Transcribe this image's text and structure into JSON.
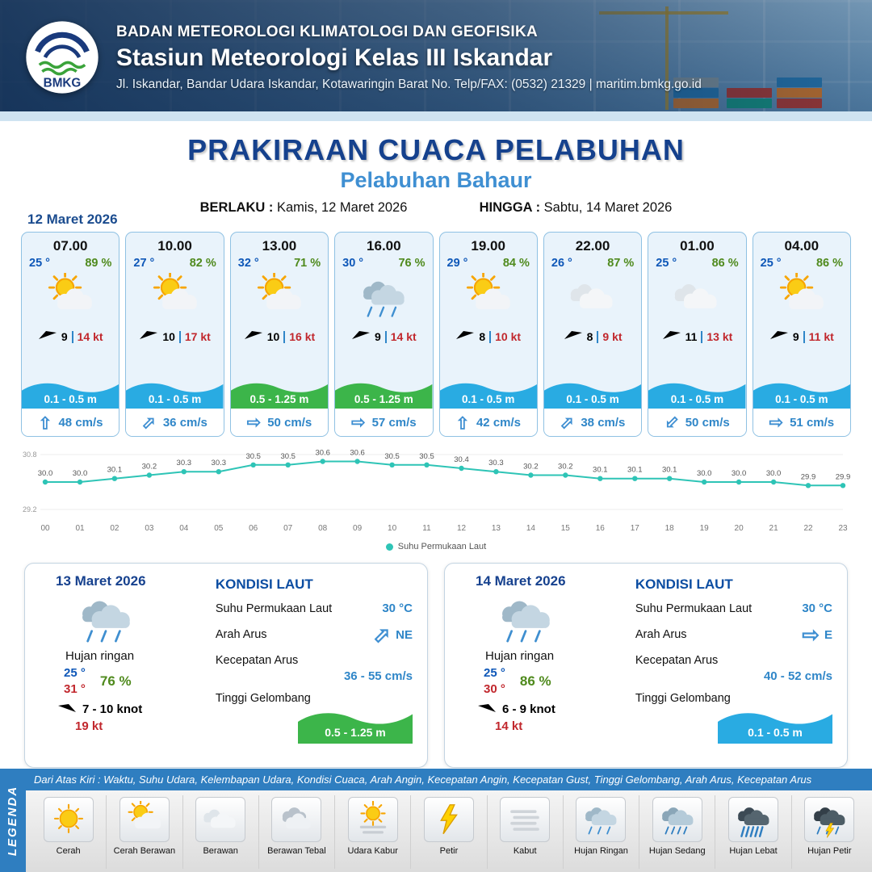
{
  "header": {
    "agency": "BADAN METEOROLOGI KLIMATOLOGI DAN GEOFISIKA",
    "station": "Stasiun Meteorologi Kelas III Iskandar",
    "address": "Jl. Iskandar, Bandar Udara Iskandar, Kotawaringin Barat No. Telp/FAX: (0532) 21329 | maritim.bmkg.go.id",
    "logo_text": "BMKG"
  },
  "title": {
    "main": "PRAKIRAAN CUACA PELABUHAN",
    "port": "Pelabuhan Bahaur",
    "valid_from_label": "BERLAKU :",
    "valid_from": "Kamis, 12 Maret 2026",
    "valid_to_label": "HINGGA :",
    "valid_to": "Sabtu, 14 Maret 2026"
  },
  "forecast": {
    "date": "12 Maret 2026",
    "cards": [
      {
        "time": "07.00",
        "temp": "25 °",
        "humidity": "89 %",
        "icon": "cerah-berawan",
        "wind_speed": "9",
        "gust": "14 kt",
        "wave": "0.1 - 0.5 m",
        "wave_level": "low",
        "current": "48 cm/s",
        "current_dir": "N"
      },
      {
        "time": "10.00",
        "temp": "27 °",
        "humidity": "82 %",
        "icon": "cerah-berawan",
        "wind_speed": "10",
        "gust": "17 kt",
        "wave": "0.1 - 0.5 m",
        "wave_level": "low",
        "current": "36 cm/s",
        "current_dir": "NE"
      },
      {
        "time": "13.00",
        "temp": "32 °",
        "humidity": "71 %",
        "icon": "cerah-berawan",
        "wind_speed": "10",
        "gust": "16 kt",
        "wave": "0.5 - 1.25 m",
        "wave_level": "mid",
        "current": "50 cm/s",
        "current_dir": "E"
      },
      {
        "time": "16.00",
        "temp": "30 °",
        "humidity": "76 %",
        "icon": "hujan-ringan",
        "wind_speed": "9",
        "gust": "14 kt",
        "wave": "0.5 - 1.25 m",
        "wave_level": "mid",
        "current": "57 cm/s",
        "current_dir": "E"
      },
      {
        "time": "19.00",
        "temp": "29 °",
        "humidity": "84 %",
        "icon": "cerah-berawan",
        "wind_speed": "8",
        "gust": "10 kt",
        "wave": "0.1 - 0.5 m",
        "wave_level": "low",
        "current": "42 cm/s",
        "current_dir": "N"
      },
      {
        "time": "22.00",
        "temp": "26 °",
        "humidity": "87 %",
        "icon": "berawan",
        "wind_speed": "8",
        "gust": "9 kt",
        "wave": "0.1 - 0.5 m",
        "wave_level": "low",
        "current": "38 cm/s",
        "current_dir": "NE"
      },
      {
        "time": "01.00",
        "temp": "25 °",
        "humidity": "86 %",
        "icon": "berawan",
        "wind_speed": "11",
        "gust": "13 kt",
        "wave": "0.1 - 0.5 m",
        "wave_level": "low",
        "current": "50 cm/s",
        "current_dir": "SW"
      },
      {
        "time": "04.00",
        "temp": "25 °",
        "humidity": "86 %",
        "icon": "cerah-berawan",
        "wind_speed": "9",
        "gust": "11 kt",
        "wave": "0.1 - 0.5 m",
        "wave_level": "low",
        "current": "51 cm/s",
        "current_dir": "E"
      }
    ]
  },
  "chart_data": {
    "type": "line",
    "series_name": "Suhu Permukaan Laut",
    "x": [
      "00",
      "01",
      "02",
      "03",
      "04",
      "05",
      "06",
      "07",
      "08",
      "09",
      "10",
      "11",
      "12",
      "13",
      "14",
      "15",
      "16",
      "17",
      "18",
      "19",
      "20",
      "21",
      "22",
      "23"
    ],
    "values": [
      30.0,
      30.0,
      30.1,
      30.2,
      30.3,
      30.3,
      30.5,
      30.5,
      30.6,
      30.6,
      30.5,
      30.5,
      30.4,
      30.3,
      30.2,
      30.2,
      30.1,
      30.1,
      30.1,
      30.0,
      30.0,
      30.0,
      29.9,
      29.9
    ],
    "ylim": [
      29.2,
      30.8
    ],
    "line_color": "#2ec4b6",
    "grid": false,
    "legend_position": "bottom"
  },
  "days": [
    {
      "date": "13 Maret 2026",
      "icon": "hujan-ringan",
      "condition": "Hujan ringan",
      "temp_min": "25 °",
      "temp_max": "31 °",
      "humidity": "76 %",
      "wind": "7  - 10 knot",
      "gust": "19 kt",
      "sea": {
        "title": "KONDISI LAUT",
        "sst_label": "Suhu Permukaan Laut",
        "sst": "30 °C",
        "current_dir_label": "Arah Arus",
        "current_dir": "NE",
        "current_speed_label": "Kecepatan Arus",
        "current_speed": "36  - 55 cm/s",
        "wave_label": "Tinggi Gelombang",
        "wave": "0.5 - 1.25 m",
        "wave_level": "mid"
      }
    },
    {
      "date": "14 Maret 2026",
      "icon": "hujan-ringan",
      "condition": "Hujan ringan",
      "temp_min": "25 °",
      "temp_max": "30 °",
      "humidity": "86 %",
      "wind": "6  - 9 knot",
      "gust": "14 kt",
      "sea": {
        "title": "KONDISI LAUT",
        "sst_label": "Suhu Permukaan Laut",
        "sst": "30 °C",
        "current_dir_label": "Arah Arus",
        "current_dir": "E",
        "current_speed_label": "Kecepatan Arus",
        "current_speed": "40  - 52 cm/s",
        "wave_label": "Tinggi Gelombang",
        "wave": "0.1 - 0.5 m",
        "wave_level": "low"
      }
    }
  ],
  "legend": {
    "band": "LEGENDA",
    "description": "Dari Atas Kiri : Waktu, Suhu Udara, Kelembapan Udara, Kondisi Cuaca, Arah Angin, Kecepatan Angin, Kecepatan Gust, Tinggi Gelombang, Arah Arus, Kecepatan Arus",
    "items": [
      {
        "label": "Cerah",
        "icon": "cerah"
      },
      {
        "label": "Cerah Berawan",
        "icon": "cerah-berawan"
      },
      {
        "label": "Berawan",
        "icon": "berawan"
      },
      {
        "label": "Berawan Tebal",
        "icon": "berawan-tebal"
      },
      {
        "label": "Udara Kabur",
        "icon": "udara-kabur"
      },
      {
        "label": "Petir",
        "icon": "petir"
      },
      {
        "label": "Kabut",
        "icon": "kabut"
      },
      {
        "label": "Hujan Ringan",
        "icon": "hujan-ringan"
      },
      {
        "label": "Hujan Sedang",
        "icon": "hujan-sedang"
      },
      {
        "label": "Hujan Lebat",
        "icon": "hujan-lebat"
      },
      {
        "label": "Hujan Petir",
        "icon": "hujan-petir"
      }
    ]
  },
  "colors": {
    "header_bg": "#12335e",
    "title": "#15418d",
    "port": "#3f8fd2",
    "temp": "#0e57b8",
    "humidity": "#4f8a1d",
    "gust": "#c1272d",
    "wave_low": "#29abe2",
    "wave_mid": "#3cb54a",
    "current_text": "#2f86c8",
    "chart_line": "#2ec4b6",
    "legend_bar": "#2f7ec0"
  }
}
